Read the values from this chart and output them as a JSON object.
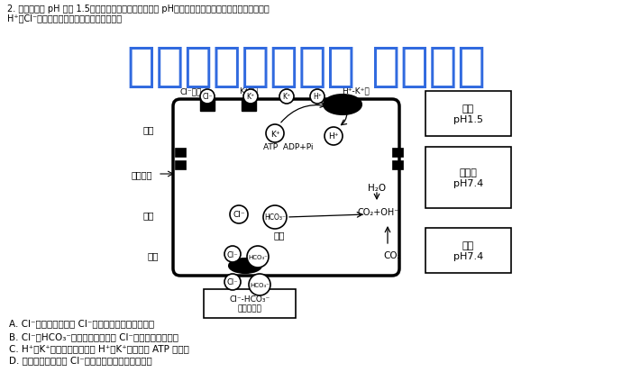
{
  "bg_color": "#ffffff",
  "watermark_color": "#1a5adc",
  "text_color": "#000000",
  "title_line1": "2. 人体胃液的 pH 约为 1.5，远低于内环境和细胞内液的 pH。如图是人体胃壁细胞分泌胃液（主要含",
  "title_line2": "H⁺和Cl⁻）的示意图，下列有关分析正确的是",
  "watermark_text": "微信公众号关注： 趣找答案",
  "options": [
    "A. Cl⁻通道蛋白在转运 Cl⁻时会发生自身构象的改变",
    "B. Cl⁻－HCO₃⁻反向转运载体运输 Cl⁻时不需要消耗能量",
    "C. H⁺－K⁺泵具有逆浓度运输 H⁺、K⁺以及水解 ATP 的功能",
    "D. 图中细胞膜上运输 Cl⁻的两种转运蛋白的结构相同"
  ]
}
